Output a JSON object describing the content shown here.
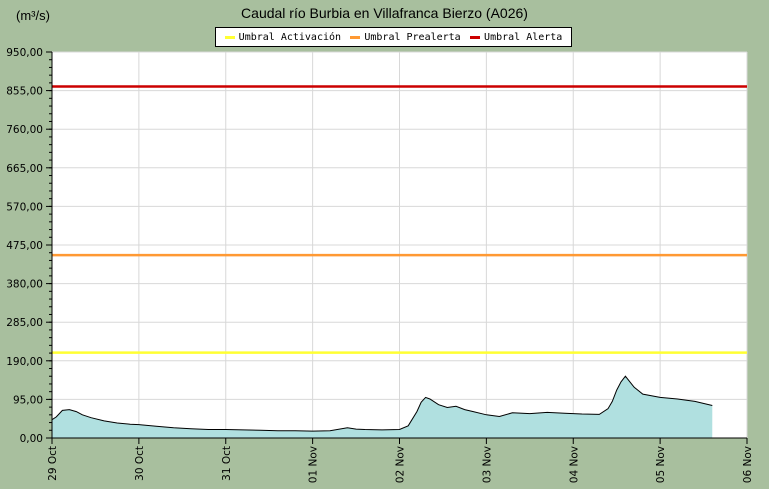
{
  "chart_data": {
    "type": "area",
    "title": "Caudal río Burbia en Villafranca Bierzo  (A026)",
    "ylabel": "(m³/s)",
    "xlabel": "",
    "ylim": [
      0,
      950
    ],
    "yticks": [
      "950,00",
      "855,00",
      "760,00",
      "665,00",
      "570,00",
      "475,00",
      "380,00",
      "285,00",
      "190,00",
      "95,00",
      "0,00"
    ],
    "ytick_values": [
      950,
      855,
      760,
      665,
      570,
      475,
      380,
      285,
      190,
      95,
      0
    ],
    "xticks": [
      "29 Oct",
      "30 Oct",
      "31 Oct",
      "01 Nov",
      "02 Nov",
      "03 Nov",
      "04 Nov",
      "05 Nov",
      "06 Nov"
    ],
    "xtick_days": [
      0,
      1,
      2,
      3,
      4,
      5,
      6,
      7,
      8
    ],
    "xlim": [
      0,
      8
    ],
    "grid": true,
    "legend_position": "top-center",
    "thresholds": [
      {
        "name": "Umbral Activación",
        "value": 210,
        "color": "#ffff33"
      },
      {
        "name": "Umbral Prealerta",
        "value": 450,
        "color": "#ff9933"
      },
      {
        "name": "Umbral Alerta",
        "value": 865,
        "color": "#cc0000"
      }
    ],
    "series": [
      {
        "fill_color": "#b0e0e0",
        "line_color": "#000000",
        "x": [
          0,
          0.05,
          0.12,
          0.2,
          0.28,
          0.35,
          0.45,
          0.6,
          0.75,
          0.9,
          1.0,
          1.2,
          1.4,
          1.6,
          1.8,
          2.0,
          2.2,
          2.4,
          2.6,
          2.8,
          3.0,
          3.2,
          3.4,
          3.5,
          3.6,
          3.8,
          4.0,
          4.1,
          4.2,
          4.25,
          4.3,
          4.35,
          4.45,
          4.55,
          4.65,
          4.75,
          4.85,
          5.0,
          5.15,
          5.3,
          5.5,
          5.7,
          5.9,
          6.0,
          6.1,
          6.3,
          6.4,
          6.45,
          6.5,
          6.55,
          6.6,
          6.7,
          6.8,
          7.0,
          7.2,
          7.4,
          7.6
        ],
        "y": [
          45,
          52,
          68,
          70,
          65,
          57,
          50,
          42,
          37,
          34,
          33,
          29,
          25,
          23,
          21,
          21,
          20,
          19,
          18,
          18,
          17,
          18,
          25,
          22,
          21,
          20,
          21,
          30,
          65,
          88,
          100,
          96,
          82,
          75,
          78,
          70,
          65,
          57,
          53,
          62,
          60,
          63,
          61,
          60,
          59,
          58,
          72,
          90,
          118,
          138,
          152,
          125,
          108,
          100,
          96,
          90,
          80
        ]
      }
    ]
  }
}
